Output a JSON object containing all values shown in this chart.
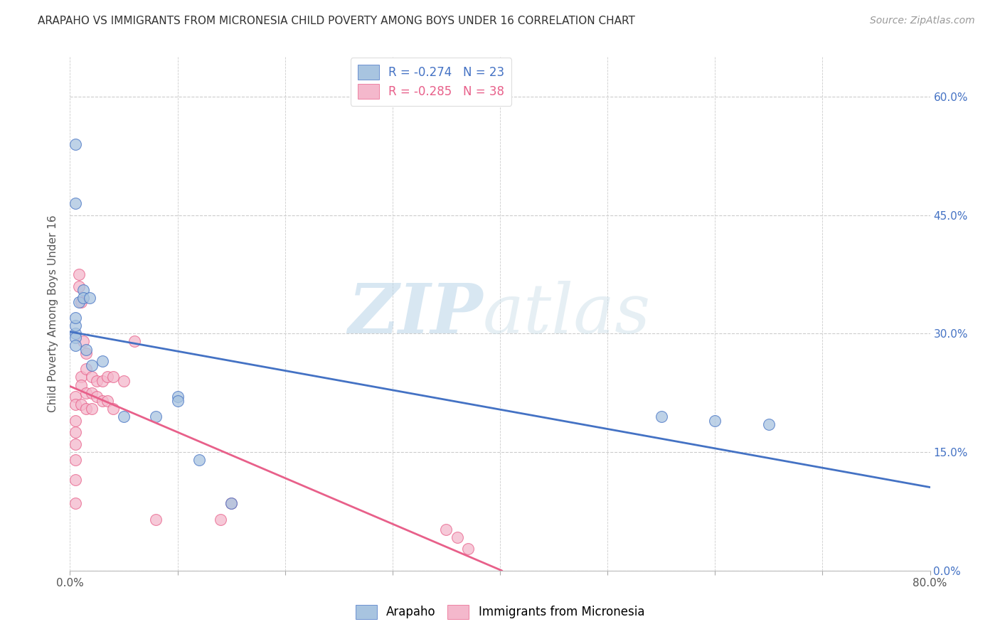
{
  "title": "ARAPAHO VS IMMIGRANTS FROM MICRONESIA CHILD POVERTY AMONG BOYS UNDER 16 CORRELATION CHART",
  "source": "Source: ZipAtlas.com",
  "ylabel": "Child Poverty Among Boys Under 16",
  "xlim": [
    0,
    0.8
  ],
  "ylim": [
    0.0,
    0.65
  ],
  "arapaho_color": "#a8c4e0",
  "micronesia_color": "#f4b8cc",
  "arapaho_line_color": "#4472c4",
  "micronesia_line_color": "#e8608a",
  "legend1_text": "R = -0.274   N = 23",
  "legend2_text": "R = -0.285   N = 38",
  "legend_label1": "Arapaho",
  "legend_label2": "Immigrants from Micronesia",
  "watermark_zip": "ZIP",
  "watermark_atlas": "atlas",
  "arapaho_x": [
    0.005,
    0.005,
    0.005,
    0.005,
    0.005,
    0.008,
    0.012,
    0.012,
    0.015,
    0.018,
    0.02,
    0.03,
    0.05,
    0.08,
    0.1,
    0.1,
    0.12,
    0.15,
    0.55,
    0.6,
    0.65,
    0.005,
    0.005
  ],
  "arapaho_y": [
    0.3,
    0.31,
    0.32,
    0.295,
    0.285,
    0.34,
    0.355,
    0.345,
    0.28,
    0.345,
    0.26,
    0.265,
    0.195,
    0.195,
    0.22,
    0.215,
    0.14,
    0.085,
    0.195,
    0.19,
    0.185,
    0.54,
    0.465
  ],
  "micronesia_x": [
    0.005,
    0.005,
    0.005,
    0.005,
    0.005,
    0.005,
    0.005,
    0.005,
    0.008,
    0.008,
    0.01,
    0.01,
    0.01,
    0.01,
    0.012,
    0.015,
    0.015,
    0.015,
    0.015,
    0.02,
    0.02,
    0.02,
    0.025,
    0.025,
    0.03,
    0.03,
    0.035,
    0.035,
    0.04,
    0.04,
    0.05,
    0.06,
    0.08,
    0.14,
    0.15,
    0.35,
    0.36,
    0.37
  ],
  "micronesia_y": [
    0.22,
    0.21,
    0.19,
    0.175,
    0.16,
    0.14,
    0.115,
    0.085,
    0.375,
    0.36,
    0.34,
    0.245,
    0.235,
    0.21,
    0.29,
    0.275,
    0.255,
    0.225,
    0.205,
    0.245,
    0.225,
    0.205,
    0.24,
    0.22,
    0.24,
    0.215,
    0.245,
    0.215,
    0.245,
    0.205,
    0.24,
    0.29,
    0.065,
    0.065,
    0.085,
    0.052,
    0.042,
    0.028
  ],
  "background_color": "#ffffff",
  "grid_color": "#cccccc",
  "y_ticks": [
    0.0,
    0.15,
    0.3,
    0.45,
    0.6
  ],
  "x_tick_positions": [
    0.0,
    0.1,
    0.2,
    0.3,
    0.4,
    0.5,
    0.6,
    0.7,
    0.8
  ]
}
